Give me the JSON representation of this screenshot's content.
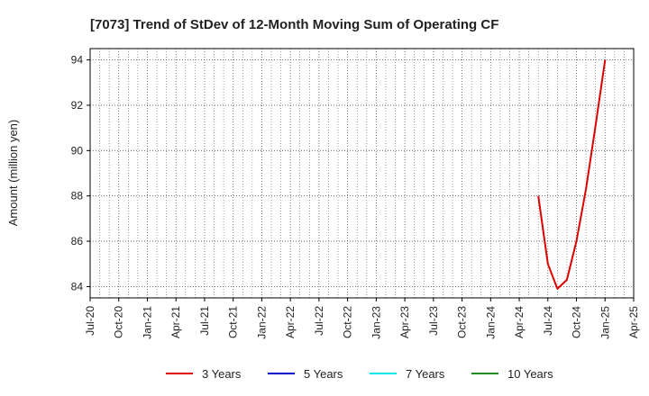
{
  "chart_data": {
    "type": "line",
    "title": "[7073]  Trend of StDev of 12-Month Moving Sum of Operating CF",
    "xlabel": "",
    "ylabel": "Amount (million yen)",
    "ylim": [
      83.5,
      94.5
    ],
    "yticks": [
      84,
      86,
      88,
      90,
      92,
      94
    ],
    "x_categories": [
      "Jul-20",
      "Oct-20",
      "Jan-21",
      "Apr-21",
      "Jul-21",
      "Oct-21",
      "Jan-22",
      "Apr-22",
      "Jul-22",
      "Oct-22",
      "Jan-23",
      "Apr-23",
      "Jul-23",
      "Oct-23",
      "Jan-24",
      "Apr-24",
      "Jul-24",
      "Oct-24",
      "Jan-25",
      "Apr-25"
    ],
    "grid": true,
    "legend_position": "bottom",
    "series": [
      {
        "name": "3 Years",
        "color": "#dd0000",
        "x": [
          "Jun-24",
          "Jul-24",
          "Aug-24",
          "Sep-24",
          "Oct-24",
          "Nov-24",
          "Dec-24",
          "Jan-25"
        ],
        "values": [
          88.0,
          85.0,
          83.9,
          84.3,
          86.0,
          88.3,
          91.1,
          94.0
        ]
      },
      {
        "name": "5 Years",
        "color": "#0000cc",
        "x": [],
        "values": []
      },
      {
        "name": "7 Years",
        "color": "#00e5ee",
        "x": [],
        "values": []
      },
      {
        "name": "10 Years",
        "color": "#228b22",
        "x": [],
        "values": []
      }
    ]
  }
}
